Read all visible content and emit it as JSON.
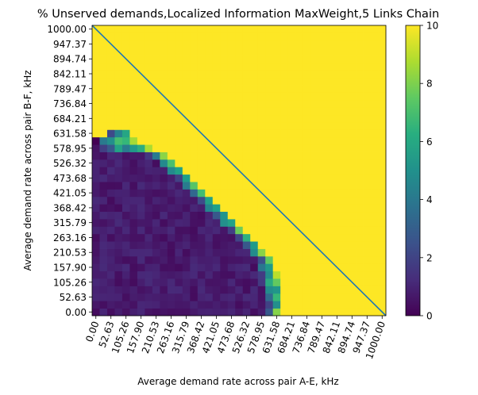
{
  "chart_data": {
    "type": "heatmap",
    "title": "% Unserved demands,Localized Information MaxWeight,5 Links Chain",
    "xlabel": "Average demand rate across pair A-E, kHz",
    "ylabel": "Average demand rate across pair B-F, kHz",
    "xlim": [
      0,
      1000
    ],
    "ylim": [
      0,
      1000
    ],
    "grid_size": 39,
    "cell_step_khz": 26.32,
    "x_ticks": [
      "0.00",
      "52.63",
      "105.26",
      "157.90",
      "210.53",
      "263.16",
      "315.79",
      "368.42",
      "421.05",
      "473.68",
      "526.32",
      "578.95",
      "631.58",
      "684.21",
      "736.84",
      "789.47",
      "842.11",
      "894.74",
      "947.37",
      "1000.00"
    ],
    "y_ticks": [
      "0.00",
      "52.63",
      "105.26",
      "157.90",
      "210.53",
      "263.16",
      "315.79",
      "368.42",
      "421.05",
      "473.68",
      "526.32",
      "578.95",
      "631.58",
      "684.21",
      "736.84",
      "789.47",
      "842.11",
      "894.74",
      "947.37",
      "1000.00"
    ],
    "colorbar": {
      "min": 0,
      "max": 10,
      "ticks": [
        "0",
        "2",
        "4",
        "6",
        "8",
        "10"
      ],
      "colormap": "viridis"
    },
    "boundary_rows": [
      {
        "row": 0,
        "y_khz": 0.0,
        "stable_until_col": 22,
        "transition_cols": [
          23,
          24
        ]
      },
      {
        "row": 1,
        "y_khz": 26.32,
        "stable_until_col": 22,
        "transition_cols": [
          23,
          24
        ]
      },
      {
        "row": 2,
        "y_khz": 52.63,
        "stable_until_col": 22,
        "transition_cols": [
          23,
          24
        ]
      },
      {
        "row": 3,
        "y_khz": 78.95,
        "stable_until_col": 22,
        "transition_cols": [
          23,
          24
        ]
      },
      {
        "row": 4,
        "y_khz": 105.26,
        "stable_until_col": 21,
        "transition_cols": [
          22,
          23,
          24
        ]
      },
      {
        "row": 5,
        "y_khz": 131.58,
        "stable_until_col": 21,
        "transition_cols": [
          22,
          23,
          24
        ]
      },
      {
        "row": 6,
        "y_khz": 157.9,
        "stable_until_col": 21,
        "transition_cols": [
          22,
          23
        ]
      },
      {
        "row": 7,
        "y_khz": 184.21,
        "stable_until_col": 21,
        "transition_cols": [
          22,
          23
        ]
      },
      {
        "row": 8,
        "y_khz": 210.53,
        "stable_until_col": 20,
        "transition_cols": [
          21,
          22
        ]
      },
      {
        "row": 9,
        "y_khz": 236.84,
        "stable_until_col": 19,
        "transition_cols": [
          20,
          21
        ]
      },
      {
        "row": 10,
        "y_khz": 263.16,
        "stable_until_col": 18,
        "transition_cols": [
          19,
          20
        ]
      },
      {
        "row": 11,
        "y_khz": 289.47,
        "stable_until_col": 17,
        "transition_cols": [
          18,
          19
        ]
      },
      {
        "row": 12,
        "y_khz": 315.79,
        "stable_until_col": 16,
        "transition_cols": [
          17,
          18
        ]
      },
      {
        "row": 13,
        "y_khz": 342.11,
        "stable_until_col": 15,
        "transition_cols": [
          16,
          17
        ]
      },
      {
        "row": 14,
        "y_khz": 368.42,
        "stable_until_col": 14,
        "transition_cols": [
          15,
          16
        ]
      },
      {
        "row": 15,
        "y_khz": 394.74,
        "stable_until_col": 13,
        "transition_cols": [
          14,
          15
        ]
      },
      {
        "row": 16,
        "y_khz": 421.05,
        "stable_until_col": 12,
        "transition_cols": [
          13,
          14
        ]
      },
      {
        "row": 17,
        "y_khz": 447.37,
        "stable_until_col": 11,
        "transition_cols": [
          12,
          13
        ]
      },
      {
        "row": 18,
        "y_khz": 473.68,
        "stable_until_col": 10,
        "transition_cols": [
          11,
          12
        ]
      },
      {
        "row": 19,
        "y_khz": 500.0,
        "stable_until_col": 9,
        "transition_cols": [
          10,
          11
        ]
      },
      {
        "row": 20,
        "y_khz": 526.32,
        "stable_until_col": 8,
        "transition_cols": [
          9,
          10
        ]
      },
      {
        "row": 21,
        "y_khz": 552.63,
        "stable_until_col": 6,
        "transition_cols": [
          7,
          8,
          9
        ]
      },
      {
        "row": 22,
        "y_khz": 578.95,
        "stable_until_col": -1,
        "transition_cols": [
          0,
          1,
          2,
          3,
          4,
          5,
          6,
          7
        ]
      },
      {
        "row": 23,
        "y_khz": 605.26,
        "stable_until_col": -1,
        "transition_cols": [
          0,
          1,
          2,
          3,
          4,
          5
        ]
      },
      {
        "row": 24,
        "y_khz": 631.58,
        "stable_until_col": -1,
        "transition_cols": [
          2,
          3,
          4
        ]
      }
    ],
    "diagonal_line": {
      "from": [
        0,
        1000
      ],
      "to": [
        1000,
        0
      ],
      "color": "#1f77b4"
    },
    "grid": false,
    "legend": "colorbar-right"
  }
}
